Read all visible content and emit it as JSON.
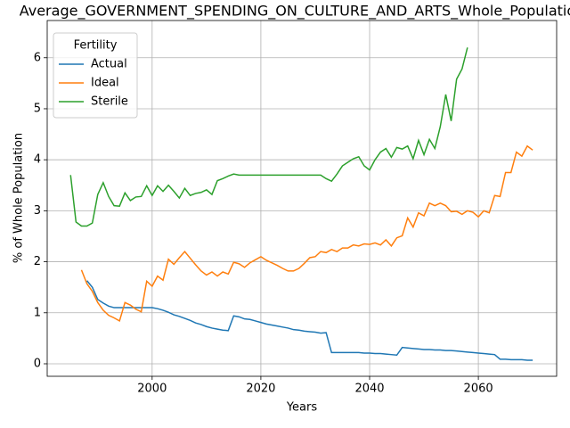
{
  "chart_data": {
    "type": "line",
    "title": "Average_GOVERNMENT_SPENDING_ON_CULTURE_AND_ARTS_Whole_Population",
    "xlabel": "Years",
    "ylabel": "% of Whole Population",
    "legend_title": "Fertility",
    "legend": "upper left",
    "grid": true,
    "x": [
      1985,
      1986,
      1987,
      1988,
      1989,
      1990,
      1991,
      1992,
      1993,
      1994,
      1995,
      1996,
      1997,
      1998,
      1999,
      2000,
      2001,
      2002,
      2003,
      2004,
      2005,
      2006,
      2007,
      2008,
      2009,
      2010,
      2011,
      2012,
      2013,
      2014,
      2015,
      2016,
      2017,
      2018,
      2019,
      2020,
      2021,
      2022,
      2023,
      2024,
      2025,
      2026,
      2027,
      2028,
      2029,
      2030,
      2031,
      2032,
      2033,
      2034,
      2035,
      2036,
      2037,
      2038,
      2039,
      2040,
      2041,
      2042,
      2043,
      2044,
      2045,
      2046,
      2047,
      2048,
      2049,
      2050,
      2051,
      2052,
      2053,
      2054,
      2055,
      2056,
      2057,
      2058,
      2059,
      2060,
      2061,
      2062,
      2063,
      2064,
      2065,
      2066,
      2067,
      2068,
      2069,
      2070
    ],
    "series": [
      {
        "name": "Actual",
        "color": "#1f77b4",
        "values": [
          null,
          null,
          null,
          1.63,
          1.5,
          1.26,
          1.19,
          1.13,
          1.1,
          1.1,
          1.1,
          1.1,
          1.1,
          1.1,
          1.1,
          1.1,
          1.08,
          1.05,
          1.01,
          0.96,
          0.93,
          0.89,
          0.85,
          0.8,
          0.77,
          0.73,
          0.7,
          0.68,
          0.66,
          0.65,
          0.94,
          0.92,
          0.88,
          0.87,
          0.84,
          0.81,
          0.78,
          0.76,
          0.74,
          0.72,
          0.7,
          0.67,
          0.66,
          0.64,
          0.63,
          0.62,
          0.6,
          0.61,
          0.22,
          0.22,
          0.22,
          0.22,
          0.22,
          0.22,
          0.21,
          0.21,
          0.2,
          0.2,
          0.19,
          0.18,
          0.17,
          0.32,
          0.31,
          0.3,
          0.29,
          0.28,
          0.28,
          0.27,
          0.27,
          0.26,
          0.26,
          0.25,
          0.24,
          0.23,
          0.22,
          0.21,
          0.2,
          0.19,
          0.18,
          0.09,
          0.09,
          0.08,
          0.08,
          0.08,
          0.07,
          0.07
        ]
      },
      {
        "name": "Ideal",
        "color": "#ff7f0e",
        "values": [
          null,
          null,
          1.84,
          1.57,
          1.42,
          1.2,
          1.05,
          0.95,
          0.9,
          0.84,
          1.2,
          1.15,
          1.07,
          1.02,
          1.62,
          1.52,
          1.72,
          1.64,
          2.05,
          1.95,
          2.08,
          2.2,
          2.07,
          1.94,
          1.82,
          1.74,
          1.8,
          1.72,
          1.8,
          1.76,
          1.99,
          1.96,
          1.89,
          1.98,
          2.04,
          2.1,
          2.03,
          1.98,
          1.93,
          1.87,
          1.82,
          1.82,
          1.87,
          1.97,
          2.08,
          2.1,
          2.2,
          2.18,
          2.24,
          2.2,
          2.27,
          2.27,
          2.33,
          2.31,
          2.35,
          2.34,
          2.37,
          2.33,
          2.43,
          2.31,
          2.47,
          2.51,
          2.86,
          2.68,
          2.96,
          2.9,
          3.15,
          3.1,
          3.15,
          3.1,
          2.98,
          2.99,
          2.93,
          3.0,
          2.97,
          2.88,
          3.0,
          2.96,
          3.3,
          3.28,
          3.75,
          3.75,
          4.15,
          4.07,
          4.27,
          4.19
        ]
      },
      {
        "name": "Sterile",
        "color": "#2ca02c",
        "values": [
          3.7,
          2.78,
          2.7,
          2.7,
          2.76,
          3.32,
          3.55,
          3.28,
          3.1,
          3.09,
          3.35,
          3.2,
          3.27,
          3.28,
          3.49,
          3.3,
          3.49,
          3.38,
          3.5,
          3.38,
          3.25,
          3.44,
          3.3,
          3.34,
          3.36,
          3.41,
          3.32,
          3.59,
          3.63,
          3.68,
          3.72,
          3.7,
          3.7,
          3.7,
          3.7,
          3.7,
          3.7,
          3.7,
          3.7,
          3.7,
          3.7,
          3.7,
          3.7,
          3.7,
          3.7,
          3.7,
          3.7,
          3.63,
          3.58,
          3.72,
          3.88,
          3.95,
          4.02,
          4.06,
          3.88,
          3.8,
          4.0,
          4.15,
          4.22,
          4.05,
          4.24,
          4.21,
          4.27,
          4.02,
          4.38,
          4.1,
          4.4,
          4.22,
          4.65,
          5.28,
          4.76,
          5.58,
          5.78,
          6.2,
          null,
          null,
          null,
          null,
          null,
          null,
          null,
          null,
          null,
          null,
          null,
          null
        ]
      }
    ],
    "xlim": [
      1980.7,
      2074.4
    ],
    "xticks": [
      2000,
      2020,
      2040,
      2060
    ],
    "ylim": [
      -0.245,
      6.73
    ],
    "yticks": [
      0,
      1,
      2,
      3,
      4,
      5,
      6
    ]
  }
}
